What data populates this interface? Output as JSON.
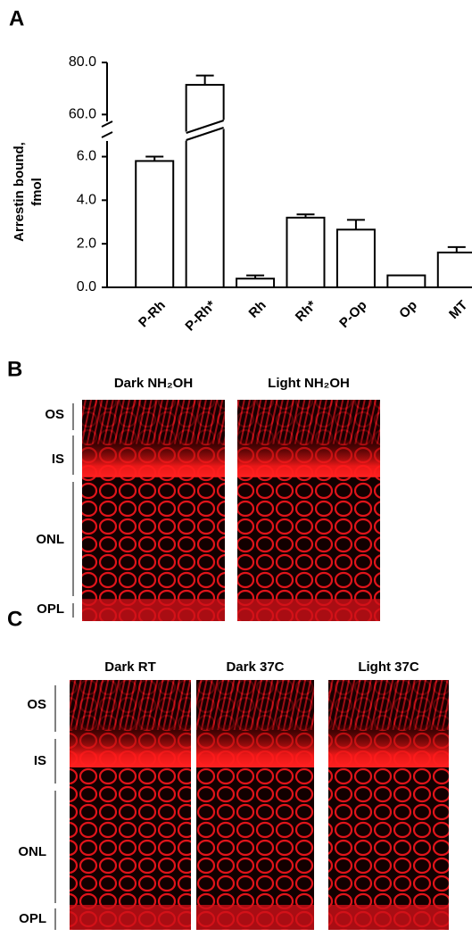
{
  "chart_data": {
    "type": "bar",
    "panel_label": "A",
    "ylabel": [
      "Arrestin bound,",
      "fmol"
    ],
    "categories": [
      "P-Rh",
      "P-Rh*",
      "Rh",
      "Rh*",
      "P-Op",
      "Op",
      "MT"
    ],
    "values": [
      5.8,
      71.4,
      0.4,
      3.2,
      2.65,
      0.55,
      1.6
    ],
    "errors": [
      0.2,
      3.6,
      0.15,
      0.15,
      0.45,
      null,
      0.25
    ],
    "color": "#ffffff",
    "ylim": [
      0,
      80
    ],
    "axis_break": [
      6.8,
      56
    ],
    "yticks": [
      {
        "value": 0,
        "label": "0.0"
      },
      {
        "value": 2,
        "label": "2.0"
      },
      {
        "value": 4,
        "label": "4.0"
      },
      {
        "value": 6,
        "label": "6.0"
      },
      {
        "value": 60,
        "label": "60.0"
      },
      {
        "value": 80,
        "label": "80.0"
      }
    ],
    "grid": false
  },
  "panels": [
    {
      "label": "B",
      "images": [
        "Dark NH₂OH",
        "Light NH₂OH"
      ],
      "layers": [
        "OS",
        "IS",
        "ONL",
        "OPL"
      ]
    },
    {
      "label": "C",
      "images": [
        "Dark RT",
        "Dark 37C",
        "Light 37C"
      ],
      "layers": [
        "OS",
        "IS",
        "ONL",
        "OPL"
      ]
    }
  ]
}
